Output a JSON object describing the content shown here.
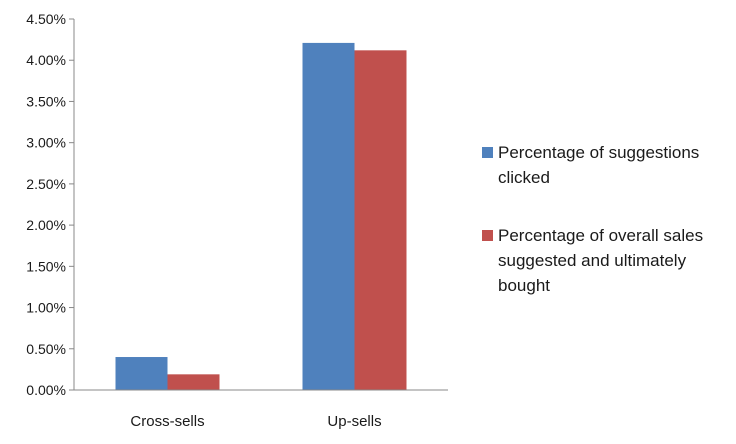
{
  "chart_data": {
    "type": "bar",
    "categories": [
      "Cross-sells",
      "Up-sells"
    ],
    "series": [
      {
        "name": "Percentage of suggestions clicked",
        "color": "#4f81bd",
        "values": [
          0.4,
          4.21
        ]
      },
      {
        "name": "Percentage of overall sales suggested and ultimately bought",
        "color": "#c0504d",
        "values": [
          0.19,
          4.12
        ]
      }
    ],
    "ylim": [
      0,
      4.5
    ],
    "yticks": [
      0,
      0.5,
      1.0,
      1.5,
      2.0,
      2.5,
      3.0,
      3.5,
      4.0,
      4.5
    ],
    "ytick_labels": [
      "0.00%",
      "0.50%",
      "1.00%",
      "1.50%",
      "2.00%",
      "2.50%",
      "3.00%",
      "3.50%",
      "4.00%",
      "4.50%"
    ],
    "legend_position": "right",
    "grid": false
  },
  "legend": {
    "item_0": "Percentage of suggestions clicked",
    "item_1": "Percentage of overall sales suggested and ultimately bought"
  }
}
